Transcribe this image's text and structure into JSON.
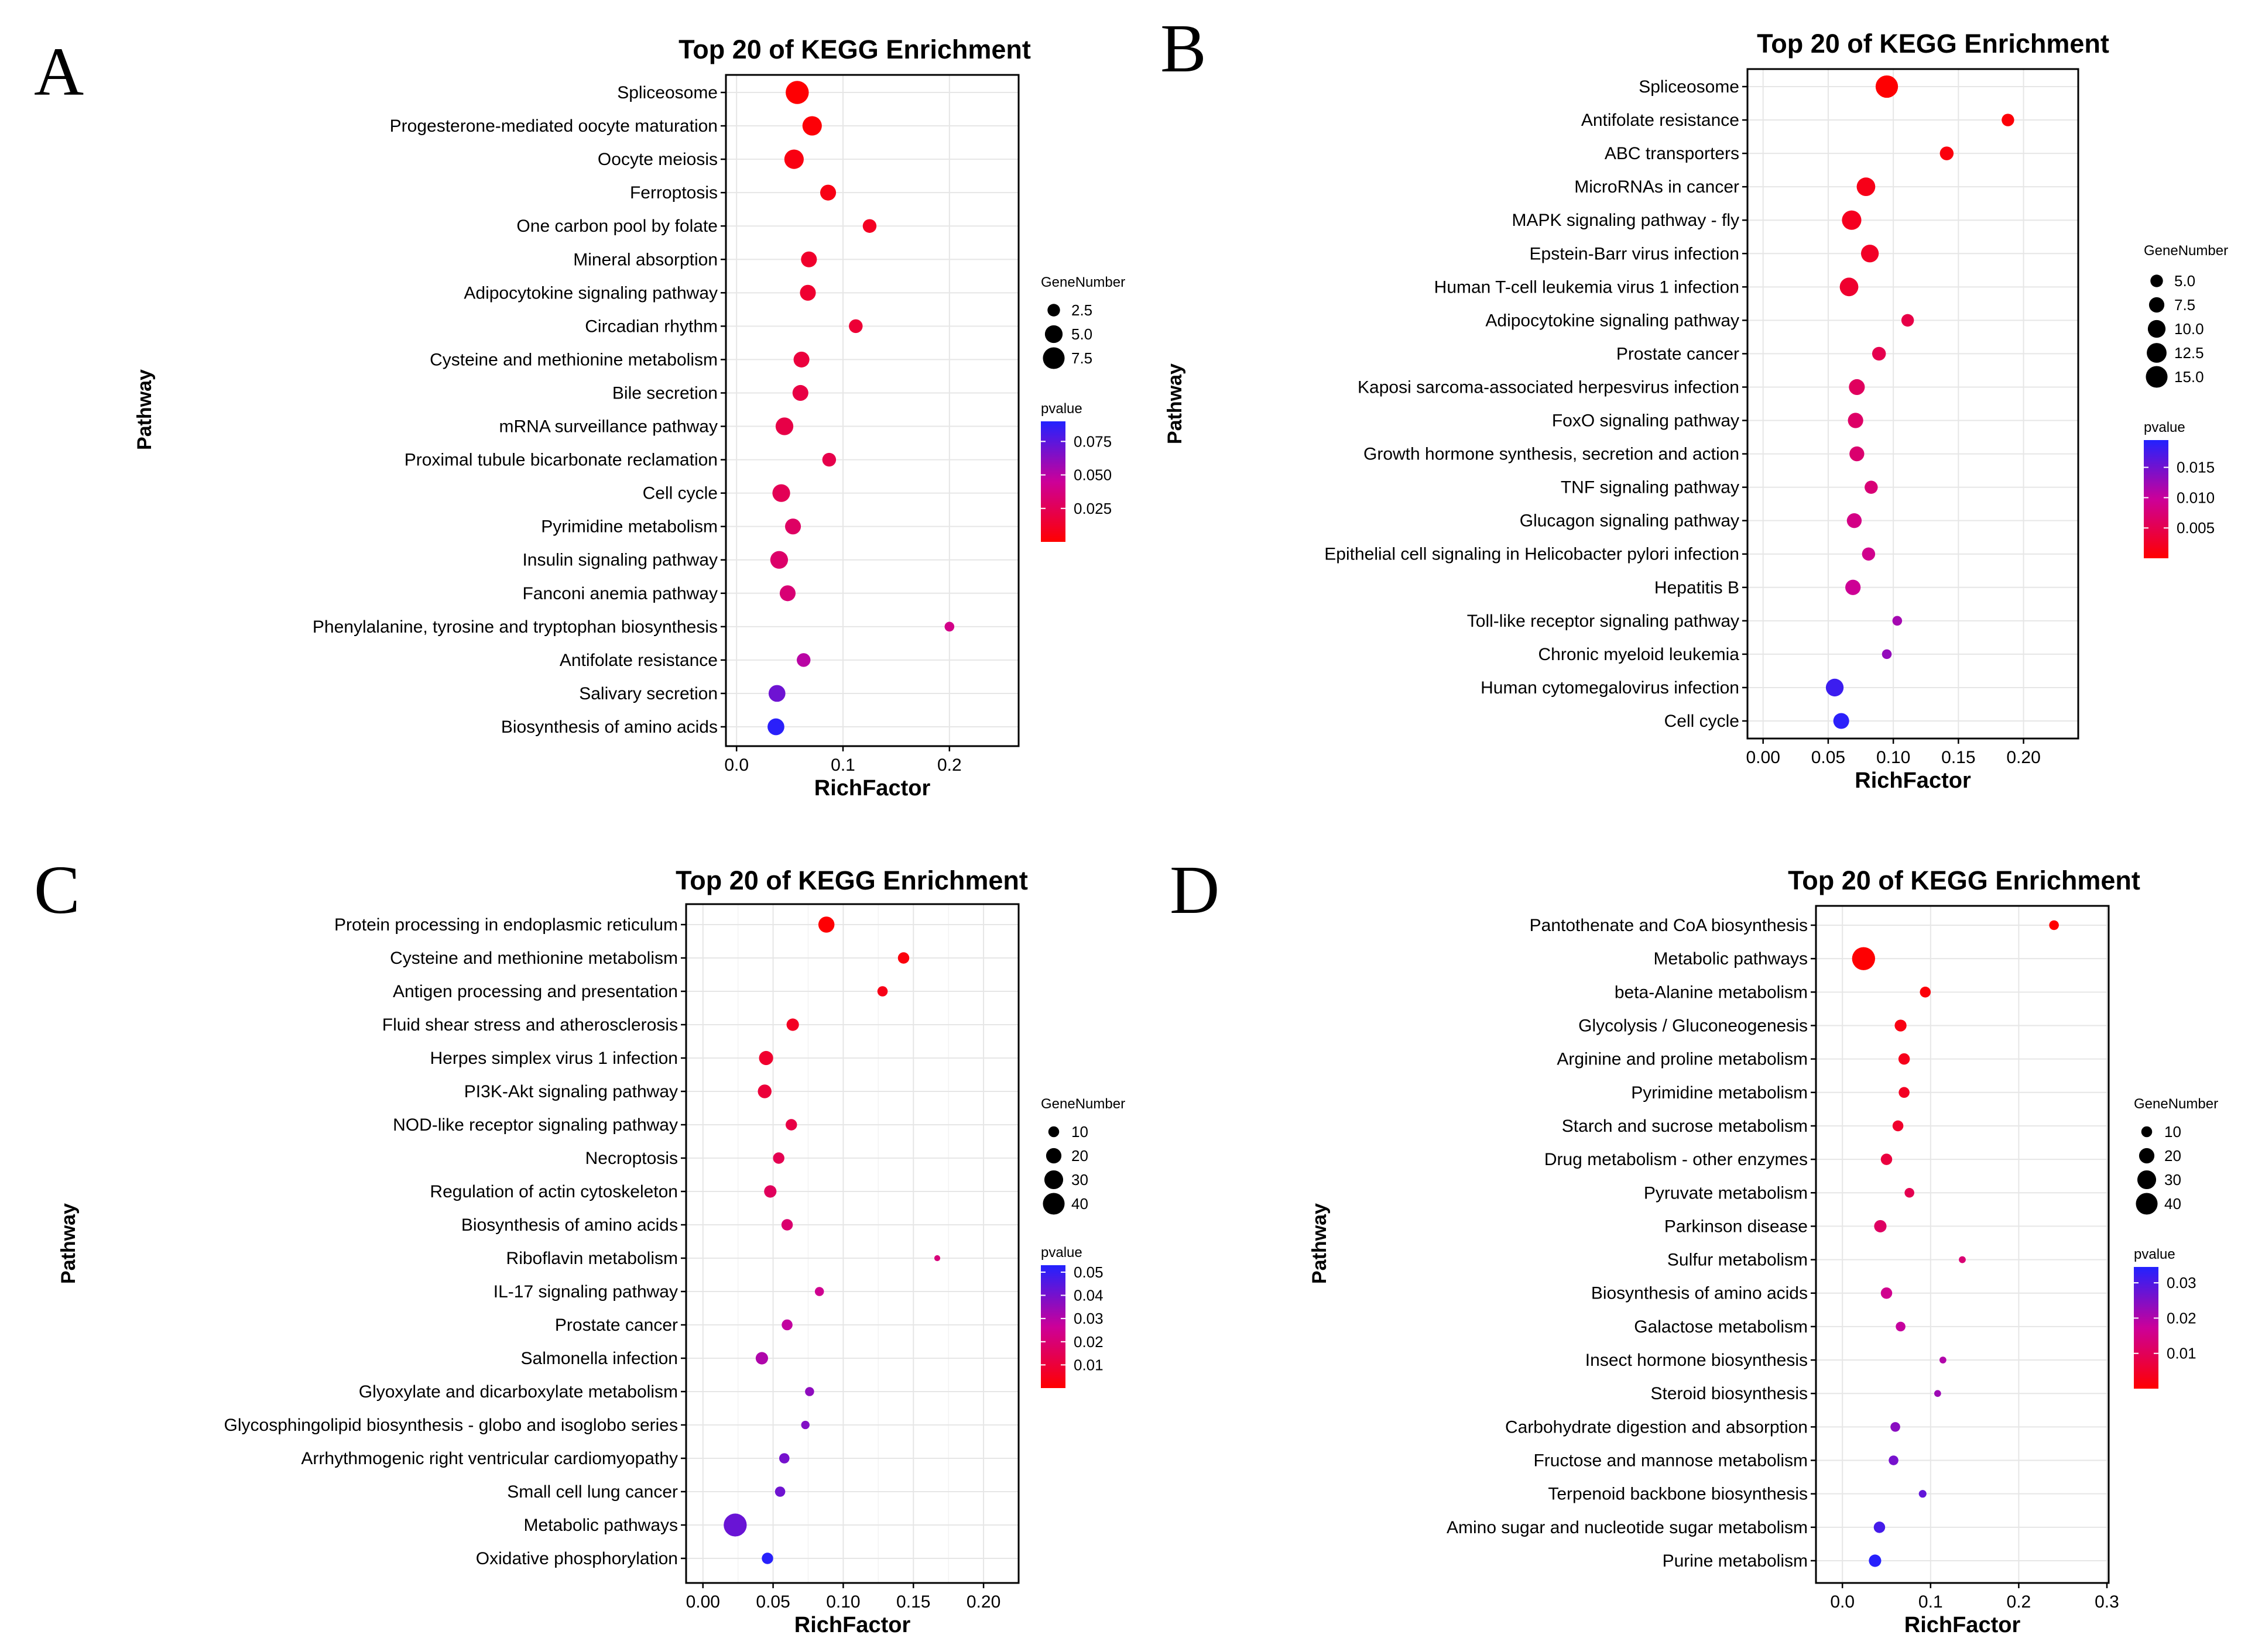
{
  "chart_data": [
    {
      "panel": "A",
      "type": "scatter",
      "title": "Top 20 of KEGG Enrichment",
      "xlabel": "RichFactor",
      "ylabel": "Pathway",
      "xlim": [
        -0.01,
        0.265
      ],
      "xticks": [
        0.0,
        0.1,
        0.2
      ],
      "xtick_labels": [
        "0.0",
        "0.1",
        "0.2"
      ],
      "size_legend": {
        "title": "GeneNumber",
        "values": [
          2.5,
          5.0,
          7.5
        ],
        "labels": [
          "2.5",
          "5.0",
          "7.5"
        ]
      },
      "color_legend": {
        "title": "pvalue",
        "range": [
          0.0,
          0.09
        ],
        "ticks": [
          0.075,
          0.05,
          0.025
        ],
        "labels": [
          "0.075",
          "0.050",
          "0.025"
        ]
      },
      "points": [
        {
          "pathway": "Spliceosome",
          "x": 0.057,
          "size": 8.5,
          "p": 0.001
        },
        {
          "pathway": "Progesterone-mediated oocyte maturation",
          "x": 0.071,
          "size": 6.0,
          "p": 0.002
        },
        {
          "pathway": "Oocyte meiosis",
          "x": 0.054,
          "size": 6.0,
          "p": 0.005
        },
        {
          "pathway": "Ferroptosis",
          "x": 0.086,
          "size": 4.0,
          "p": 0.006
        },
        {
          "pathway": "One carbon pool by folate",
          "x": 0.125,
          "size": 3.0,
          "p": 0.01
        },
        {
          "pathway": "Mineral absorption",
          "x": 0.068,
          "size": 4.0,
          "p": 0.013
        },
        {
          "pathway": "Adipocytokine signaling pathway",
          "x": 0.067,
          "size": 4.0,
          "p": 0.014
        },
        {
          "pathway": "Circadian rhythm",
          "x": 0.112,
          "size": 3.0,
          "p": 0.016
        },
        {
          "pathway": "Cysteine and methionine metabolism",
          "x": 0.061,
          "size": 4.0,
          "p": 0.018
        },
        {
          "pathway": "Bile secretion",
          "x": 0.06,
          "size": 4.0,
          "p": 0.02
        },
        {
          "pathway": "mRNA surveillance pathway",
          "x": 0.045,
          "size": 5.0,
          "p": 0.021
        },
        {
          "pathway": "Proximal tubule bicarbonate reclamation",
          "x": 0.087,
          "size": 3.0,
          "p": 0.022
        },
        {
          "pathway": "Cell cycle",
          "x": 0.042,
          "size": 5.0,
          "p": 0.025
        },
        {
          "pathway": "Pyrimidine metabolism",
          "x": 0.053,
          "size": 4.0,
          "p": 0.029
        },
        {
          "pathway": "Insulin signaling pathway",
          "x": 0.04,
          "size": 5.0,
          "p": 0.031
        },
        {
          "pathway": "Fanconi anemia pathway",
          "x": 0.048,
          "size": 4.0,
          "p": 0.034
        },
        {
          "pathway": "Phenylalanine, tyrosine and tryptophan biosynthesis",
          "x": 0.2,
          "size": 1.5,
          "p": 0.04
        },
        {
          "pathway": "Antifolate resistance",
          "x": 0.063,
          "size": 3.0,
          "p": 0.05
        },
        {
          "pathway": "Salivary secretion",
          "x": 0.038,
          "size": 4.5,
          "p": 0.07
        },
        {
          "pathway": "Biosynthesis of amino acids",
          "x": 0.037,
          "size": 4.5,
          "p": 0.088
        }
      ]
    },
    {
      "panel": "B",
      "type": "scatter",
      "title": "Top 20 of KEGG Enrichment",
      "xlabel": "RichFactor",
      "ylabel": "Pathway",
      "xlim": [
        -0.012,
        0.242
      ],
      "xticks": [
        0.0,
        0.05,
        0.1,
        0.15,
        0.2
      ],
      "xtick_labels": [
        "0.00",
        "0.05",
        "0.10",
        "0.15",
        "0.20"
      ],
      "size_legend": {
        "title": "GeneNumber",
        "values": [
          5.0,
          7.5,
          10.0,
          12.5,
          15.0
        ],
        "labels": [
          "5.0",
          "7.5",
          "10.0",
          "12.5",
          "15.0"
        ]
      },
      "color_legend": {
        "title": "pvalue",
        "range": [
          0.0,
          0.0195
        ],
        "ticks": [
          0.015,
          0.01,
          0.005
        ],
        "labels": [
          "0.015",
          "0.010",
          "0.005"
        ]
      },
      "points": [
        {
          "pathway": "Spliceosome",
          "x": 0.095,
          "size": 16.0,
          "p": 0.0001
        },
        {
          "pathway": "Antifolate resistance",
          "x": 0.188,
          "size": 5.0,
          "p": 0.0005
        },
        {
          "pathway": "ABC transporters",
          "x": 0.141,
          "size": 6.0,
          "p": 0.0008
        },
        {
          "pathway": "MicroRNAs in cancer",
          "x": 0.079,
          "size": 11.0,
          "p": 0.0015
        },
        {
          "pathway": "MAPK signaling pathway - fly",
          "x": 0.068,
          "size": 12.0,
          "p": 0.002
        },
        {
          "pathway": "Epstein-Barr virus infection",
          "x": 0.082,
          "size": 10.0,
          "p": 0.0025
        },
        {
          "pathway": "Human T-cell leukemia virus 1 infection",
          "x": 0.066,
          "size": 11.0,
          "p": 0.003
        },
        {
          "pathway": "Adipocytokine signaling pathway",
          "x": 0.111,
          "size": 5.0,
          "p": 0.0045
        },
        {
          "pathway": "Prostate cancer",
          "x": 0.089,
          "size": 6.0,
          "p": 0.005
        },
        {
          "pathway": "Kaposi sarcoma-associated herpesvirus infection",
          "x": 0.072,
          "size": 8.0,
          "p": 0.006
        },
        {
          "pathway": "FoxO signaling pathway",
          "x": 0.071,
          "size": 7.5,
          "p": 0.0065
        },
        {
          "pathway": "Growth hormone synthesis, secretion and action",
          "x": 0.072,
          "size": 7.0,
          "p": 0.007
        },
        {
          "pathway": "TNF signaling pathway",
          "x": 0.083,
          "size": 5.5,
          "p": 0.0075
        },
        {
          "pathway": "Glucagon signaling pathway",
          "x": 0.07,
          "size": 7.0,
          "p": 0.0085
        },
        {
          "pathway": "Epithelial cell signaling in Helicobacter pylori infection",
          "x": 0.081,
          "size": 5.5,
          "p": 0.009
        },
        {
          "pathway": "Hepatitis B",
          "x": 0.069,
          "size": 7.5,
          "p": 0.0095
        },
        {
          "pathway": "Toll-like receptor signaling pathway",
          "x": 0.103,
          "size": 3.0,
          "p": 0.012
        },
        {
          "pathway": "Chronic myeloid leukemia",
          "x": 0.095,
          "size": 3.0,
          "p": 0.013
        },
        {
          "pathway": "Human cytomegalovirus infection",
          "x": 0.055,
          "size": 10.0,
          "p": 0.018
        },
        {
          "pathway": "Cell cycle",
          "x": 0.06,
          "size": 8.0,
          "p": 0.019
        }
      ]
    },
    {
      "panel": "C",
      "type": "scatter",
      "title": "Top 20 of KEGG Enrichment",
      "xlabel": "RichFactor",
      "ylabel": "Pathway",
      "xlim": [
        -0.012,
        0.225
      ],
      "xticks": [
        0.0,
        0.05,
        0.1,
        0.15,
        0.2
      ],
      "xtick_labels": [
        "0.00",
        "0.05",
        "0.10",
        "0.15",
        "0.20"
      ],
      "x_minor_ticks": [
        0.025,
        0.075,
        0.125,
        0.175
      ],
      "size_legend": {
        "title": "GeneNumber",
        "values": [
          10,
          20,
          30,
          40
        ],
        "labels": [
          "10",
          "20",
          "30",
          "40"
        ]
      },
      "color_legend": {
        "title": "pvalue",
        "range": [
          0.0,
          0.053
        ],
        "ticks": [
          0.05,
          0.04,
          0.03,
          0.02,
          0.01
        ],
        "labels": [
          "0.05",
          "0.04",
          "0.03",
          "0.02",
          "0.01"
        ]
      },
      "points": [
        {
          "pathway": "Protein processing in endoplasmic reticulum",
          "x": 0.088,
          "size": 22,
          "p": 0.0005
        },
        {
          "pathway": "Cysteine and methionine metabolism",
          "x": 0.143,
          "size": 11,
          "p": 0.002
        },
        {
          "pathway": "Antigen processing and presentation",
          "x": 0.128,
          "size": 9,
          "p": 0.004
        },
        {
          "pathway": "Fluid shear stress and atherosclerosis",
          "x": 0.064,
          "size": 13,
          "p": 0.006
        },
        {
          "pathway": "Herpes simplex virus 1 infection",
          "x": 0.045,
          "size": 17,
          "p": 0.008
        },
        {
          "pathway": "PI3K-Akt signaling pathway",
          "x": 0.044,
          "size": 16,
          "p": 0.01
        },
        {
          "pathway": "NOD-like receptor signaling pathway",
          "x": 0.063,
          "size": 11,
          "p": 0.012
        },
        {
          "pathway": "Necroptosis",
          "x": 0.054,
          "size": 11,
          "p": 0.014
        },
        {
          "pathway": "Regulation of actin cytoskeleton",
          "x": 0.048,
          "size": 13,
          "p": 0.016
        },
        {
          "pathway": "Biosynthesis of amino acids",
          "x": 0.06,
          "size": 11,
          "p": 0.019
        },
        {
          "pathway": "Riboflavin metabolism",
          "x": 0.167,
          "size": 3,
          "p": 0.021
        },
        {
          "pathway": "IL-17 signaling pathway",
          "x": 0.083,
          "size": 7,
          "p": 0.025
        },
        {
          "pathway": "Prostate cancer",
          "x": 0.06,
          "size": 10,
          "p": 0.028
        },
        {
          "pathway": "Salmonella infection",
          "x": 0.042,
          "size": 13,
          "p": 0.031
        },
        {
          "pathway": "Glyoxylate and dicarboxylate metabolism",
          "x": 0.076,
          "size": 7,
          "p": 0.036
        },
        {
          "pathway": "Glycosphingolipid biosynthesis - globo and isoglobo series",
          "x": 0.073,
          "size": 6,
          "p": 0.038
        },
        {
          "pathway": "Arrhythmogenic right ventricular cardiomyopathy",
          "x": 0.058,
          "size": 9,
          "p": 0.04
        },
        {
          "pathway": "Small cell lung cancer",
          "x": 0.055,
          "size": 9,
          "p": 0.041
        },
        {
          "pathway": "Metabolic pathways",
          "x": 0.023,
          "size": 45,
          "p": 0.042
        },
        {
          "pathway": "Oxidative phosphorylation",
          "x": 0.046,
          "size": 11,
          "p": 0.052
        }
      ]
    },
    {
      "panel": "D",
      "type": "scatter",
      "title": "Top 20 of KEGG Enrichment",
      "xlabel": "RichFactor",
      "ylabel": "Pathway",
      "xlim": [
        -0.03,
        0.302
      ],
      "xticks": [
        0.0,
        0.1,
        0.2,
        0.3
      ],
      "xtick_labels": [
        "0.0",
        "0.1",
        "0.2",
        "0.3"
      ],
      "size_legend": {
        "title": "GeneNumber",
        "values": [
          10,
          20,
          30,
          40
        ],
        "labels": [
          "10",
          "20",
          "30",
          "40"
        ]
      },
      "color_legend": {
        "title": "pvalue",
        "range": [
          0.0,
          0.0345
        ],
        "ticks": [
          0.03,
          0.02,
          0.01
        ],
        "labels": [
          "0.03",
          "0.02",
          "0.01"
        ]
      },
      "points": [
        {
          "pathway": "Pantothenate and CoA biosynthesis",
          "x": 0.24,
          "size": 8,
          "p": 0.0001
        },
        {
          "pathway": "Metabolic pathways",
          "x": 0.024,
          "size": 45,
          "p": 0.0002
        },
        {
          "pathway": "beta-Alanine metabolism",
          "x": 0.094,
          "size": 10,
          "p": 0.001
        },
        {
          "pathway": "Glycolysis / Gluconeogenesis",
          "x": 0.066,
          "size": 12,
          "p": 0.002
        },
        {
          "pathway": "Arginine and proline metabolism",
          "x": 0.07,
          "size": 11,
          "p": 0.003
        },
        {
          "pathway": "Pyrimidine metabolism",
          "x": 0.07,
          "size": 10,
          "p": 0.004
        },
        {
          "pathway": "Starch and sucrose metabolism",
          "x": 0.063,
          "size": 10,
          "p": 0.005
        },
        {
          "pathway": "Drug metabolism - other enzymes",
          "x": 0.05,
          "size": 11,
          "p": 0.007
        },
        {
          "pathway": "Pyruvate metabolism",
          "x": 0.076,
          "size": 8,
          "p": 0.009
        },
        {
          "pathway": "Parkinson disease",
          "x": 0.043,
          "size": 13,
          "p": 0.011
        },
        {
          "pathway": "Sulfur metabolism",
          "x": 0.136,
          "size": 4,
          "p": 0.013
        },
        {
          "pathway": "Biosynthesis of amino acids",
          "x": 0.05,
          "size": 11,
          "p": 0.016
        },
        {
          "pathway": "Galactose metabolism",
          "x": 0.066,
          "size": 8,
          "p": 0.018
        },
        {
          "pathway": "Insect hormone biosynthesis",
          "x": 0.114,
          "size": 4,
          "p": 0.02
        },
        {
          "pathway": "Steroid biosynthesis",
          "x": 0.108,
          "size": 4,
          "p": 0.022
        },
        {
          "pathway": "Carbohydrate digestion and absorption",
          "x": 0.06,
          "size": 8,
          "p": 0.024
        },
        {
          "pathway": "Fructose and mannose metabolism",
          "x": 0.058,
          "size": 8,
          "p": 0.026
        },
        {
          "pathway": "Terpenoid backbone biosynthesis",
          "x": 0.091,
          "size": 5,
          "p": 0.028
        },
        {
          "pathway": "Amino sugar and nucleotide sugar metabolism",
          "x": 0.042,
          "size": 11,
          "p": 0.031
        },
        {
          "pathway": "Purine metabolism",
          "x": 0.037,
          "size": 13,
          "p": 0.034
        }
      ]
    }
  ]
}
